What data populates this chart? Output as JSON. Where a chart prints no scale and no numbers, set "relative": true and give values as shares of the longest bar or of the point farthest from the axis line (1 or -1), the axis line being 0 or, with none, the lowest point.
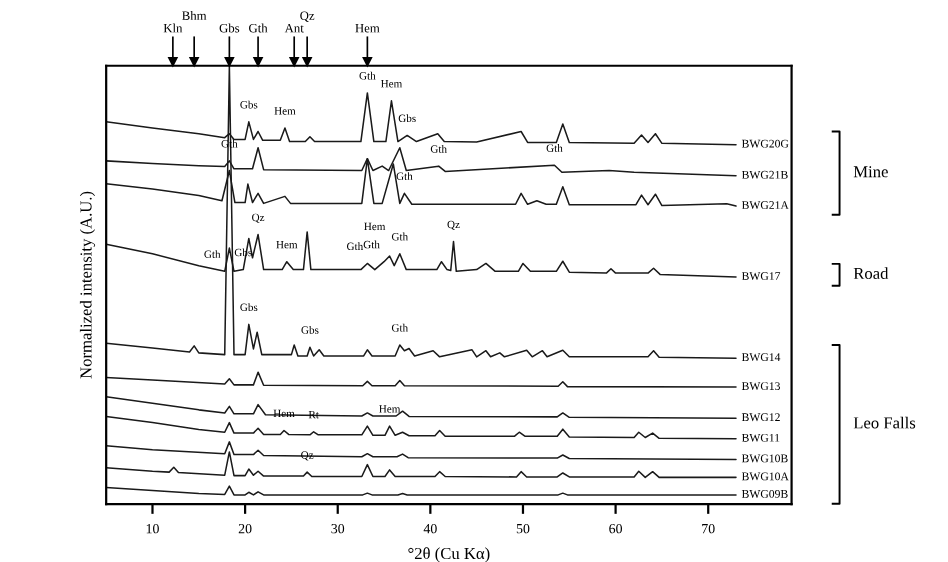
{
  "chart_data": {
    "type": "line",
    "relative": true,
    "xlabel": "°2θ (Cu Kα)",
    "ylabel": "Normalized intensity (A.U.)",
    "xlim": [
      5,
      79
    ],
    "xticks": [
      10,
      20,
      30,
      40,
      50,
      60,
      70
    ],
    "ref_lines": [
      {
        "axis": "x",
        "value": 12.2,
        "label": "Kln"
      },
      {
        "axis": "x",
        "value": 14.5,
        "label": "Bhm"
      },
      {
        "axis": "x",
        "value": 18.3,
        "label": "Gbs"
      },
      {
        "axis": "x",
        "value": 21.4,
        "label": "Gth"
      },
      {
        "axis": "x",
        "value": 25.3,
        "label": "Ant"
      },
      {
        "axis": "x",
        "value": 26.7,
        "label": "Qz"
      },
      {
        "axis": "x",
        "value": 33.2,
        "label": "Hem"
      }
    ],
    "legend": false,
    "grid": false,
    "marker": "none",
    "line_style": "solid",
    "series": [
      {
        "name": "BWG20G",
        "color": "#1a1a1a",
        "x": [
          5,
          10,
          15,
          17.8,
          18.3,
          18.8,
          20.0,
          20.4,
          20.9,
          21.4,
          21.9,
          23.8,
          24.3,
          24.8,
          26.5,
          27,
          27.5,
          32.5,
          33.2,
          33.9,
          35.2,
          35.8,
          36.5,
          37.5,
          38.5,
          40.8,
          41.5,
          45,
          49.8,
          50.5,
          53.6,
          54.3,
          55,
          62,
          62.8,
          63.5,
          64.3,
          65,
          73
        ],
        "values": [
          0.872,
          0.858,
          0.845,
          0.836,
          0.845,
          0.832,
          0.832,
          0.872,
          0.832,
          0.85,
          0.83,
          0.83,
          0.858,
          0.827,
          0.827,
          0.838,
          0.827,
          0.827,
          0.938,
          0.827,
          0.827,
          0.92,
          0.827,
          0.841,
          0.827,
          0.845,
          0.827,
          0.826,
          0.85,
          0.825,
          0.825,
          0.867,
          0.825,
          0.823,
          0.842,
          0.825,
          0.845,
          0.823,
          0.82
        ]
      },
      {
        "name": "BWG21B",
        "color": "#1a1a1a",
        "x": [
          5,
          10,
          15,
          17.8,
          18.3,
          18.8,
          20.8,
          21.4,
          22.0,
          32.6,
          33.2,
          33.8,
          34.8,
          35.5,
          36.7,
          37.4,
          40.9,
          41.6,
          53.4,
          54.2,
          59.3,
          62,
          73
        ],
        "values": [
          0.783,
          0.777,
          0.772,
          0.77,
          0.783,
          0.765,
          0.765,
          0.813,
          0.763,
          0.761,
          0.788,
          0.761,
          0.771,
          0.761,
          0.813,
          0.761,
          0.771,
          0.759,
          0.773,
          0.757,
          0.761,
          0.757,
          0.749
        ]
      },
      {
        "name": "BWG21A",
        "color": "#1a1a1a",
        "x": [
          5,
          10,
          15,
          17.5,
          18.3,
          18.9,
          20.0,
          20.3,
          20.8,
          21.4,
          22,
          24.3,
          24.9,
          32.6,
          33.2,
          33.9,
          34.8,
          36.0,
          36.7,
          37.2,
          38,
          49.2,
          49.8,
          50.5,
          51.5,
          52.5,
          53.6,
          54.3,
          55,
          62.2,
          62.8,
          63.5,
          64.3,
          65,
          72,
          73
        ],
        "values": [
          0.731,
          0.719,
          0.704,
          0.692,
          0.761,
          0.688,
          0.688,
          0.73,
          0.688,
          0.709,
          0.686,
          0.702,
          0.686,
          0.686,
          0.788,
          0.686,
          0.686,
          0.776,
          0.686,
          0.709,
          0.684,
          0.684,
          0.709,
          0.684,
          0.692,
          0.684,
          0.684,
          0.724,
          0.683,
          0.683,
          0.705,
          0.683,
          0.707,
          0.681,
          0.685,
          0.68
        ]
      },
      {
        "name": "BWG17",
        "color": "#1a1a1a",
        "x": [
          5,
          10,
          15,
          17.8,
          18.3,
          18.8,
          19.8,
          20.4,
          20.8,
          21.4,
          22.0,
          24.0,
          24.5,
          25.2,
          26.3,
          26.7,
          27.1,
          32.5,
          33.2,
          34.0,
          35.0,
          35.6,
          36.1,
          36.7,
          37.4,
          40.7,
          41.2,
          41.8,
          42.2,
          42.5,
          42.8,
          45,
          46,
          47,
          49.5,
          50,
          50.8,
          53.6,
          54.3,
          55,
          59,
          59.5,
          60,
          63.5,
          64.1,
          64.8,
          73
        ],
        "values": [
          0.593,
          0.571,
          0.544,
          0.531,
          0.584,
          0.531,
          0.535,
          0.606,
          0.562,
          0.615,
          0.535,
          0.535,
          0.553,
          0.535,
          0.535,
          0.621,
          0.535,
          0.535,
          0.549,
          0.535,
          0.553,
          0.566,
          0.544,
          0.571,
          0.535,
          0.535,
          0.553,
          0.535,
          0.533,
          0.599,
          0.531,
          0.535,
          0.549,
          0.531,
          0.531,
          0.549,
          0.531,
          0.531,
          0.554,
          0.529,
          0.527,
          0.537,
          0.527,
          0.527,
          0.538,
          0.524,
          0.518
        ]
      },
      {
        "name": "BWG14",
        "color": "#1a1a1a",
        "x": [
          5,
          10,
          14,
          14.5,
          15,
          17.8,
          18.3,
          18.8,
          20.0,
          20.4,
          20.9,
          21.3,
          21.8,
          25.0,
          25.3,
          25.7,
          26.7,
          27,
          27.4,
          28,
          28.5,
          32.8,
          33.2,
          33.7,
          36.2,
          36.7,
          37.2,
          37.7,
          38.3,
          40.3,
          41,
          44.5,
          45,
          46,
          46.5,
          47.5,
          48,
          50.4,
          51,
          52.1,
          52.6,
          54.3,
          55,
          63.5,
          64.1,
          64.7,
          73
        ],
        "values": [
          0.367,
          0.356,
          0.347,
          0.361,
          0.345,
          0.341,
          1.0,
          0.341,
          0.341,
          0.41,
          0.354,
          0.392,
          0.341,
          0.341,
          0.363,
          0.338,
          0.338,
          0.358,
          0.338,
          0.352,
          0.338,
          0.338,
          0.352,
          0.338,
          0.338,
          0.363,
          0.35,
          0.355,
          0.338,
          0.35,
          0.336,
          0.352,
          0.336,
          0.35,
          0.336,
          0.345,
          0.336,
          0.351,
          0.336,
          0.35,
          0.336,
          0.351,
          0.336,
          0.336,
          0.35,
          0.335,
          0.333
        ]
      },
      {
        "name": "BWG13",
        "color": "#1a1a1a",
        "x": [
          5,
          10,
          17.8,
          18.3,
          18.8,
          20.9,
          21.4,
          22,
          32.7,
          33.2,
          33.7,
          36.2,
          36.7,
          37.2,
          53.8,
          54.3,
          54.8,
          73
        ],
        "values": [
          0.289,
          0.283,
          0.274,
          0.286,
          0.272,
          0.272,
          0.301,
          0.271,
          0.27,
          0.28,
          0.27,
          0.27,
          0.282,
          0.27,
          0.269,
          0.279,
          0.268,
          0.267
        ]
      },
      {
        "name": "BWG12",
        "color": "#1a1a1a",
        "x": [
          5,
          10,
          15,
          17.8,
          18.3,
          18.8,
          20.9,
          21.4,
          22.2,
          32.6,
          33.2,
          33.8,
          36.3,
          37,
          37.7,
          53.7,
          54.3,
          55,
          73
        ],
        "values": [
          0.245,
          0.23,
          0.215,
          0.208,
          0.223,
          0.206,
          0.206,
          0.227,
          0.204,
          0.201,
          0.208,
          0.201,
          0.201,
          0.212,
          0.2,
          0.199,
          0.208,
          0.198,
          0.196
        ]
      },
      {
        "name": "BWG11",
        "color": "#1a1a1a",
        "x": [
          5,
          10,
          15,
          17.8,
          18.3,
          18.8,
          20.9,
          21.4,
          22,
          23.8,
          24.2,
          24.7,
          27,
          27.4,
          27.9,
          32.6,
          33.2,
          33.8,
          35.1,
          35.6,
          36.2,
          37,
          37.7,
          40.5,
          41,
          41.6,
          49.1,
          49.6,
          50.2,
          53.7,
          54.3,
          55,
          62,
          62.5,
          63.2,
          64,
          64.7,
          73
        ],
        "values": [
          0.2,
          0.186,
          0.17,
          0.164,
          0.186,
          0.162,
          0.162,
          0.173,
          0.159,
          0.159,
          0.168,
          0.159,
          0.158,
          0.165,
          0.158,
          0.158,
          0.178,
          0.157,
          0.157,
          0.178,
          0.157,
          0.164,
          0.156,
          0.156,
          0.168,
          0.155,
          0.155,
          0.164,
          0.155,
          0.155,
          0.171,
          0.153,
          0.152,
          0.164,
          0.152,
          0.162,
          0.15,
          0.149
        ]
      },
      {
        "name": "BWG10B",
        "color": "#1a1a1a",
        "x": [
          5,
          10,
          17.8,
          18.3,
          18.8,
          20.9,
          21.4,
          22,
          32.6,
          33.2,
          33.8,
          36.4,
          37,
          37.6,
          53.7,
          54.3,
          55,
          73
        ],
        "values": [
          0.133,
          0.124,
          0.115,
          0.142,
          0.113,
          0.113,
          0.123,
          0.111,
          0.108,
          0.115,
          0.108,
          0.108,
          0.114,
          0.106,
          0.105,
          0.112,
          0.104,
          0.102
        ]
      },
      {
        "name": "BWG10A",
        "color": "#1a1a1a",
        "x": [
          5,
          10,
          11.8,
          12.3,
          12.8,
          17.8,
          18.3,
          18.8,
          20.0,
          20.4,
          20.9,
          21.4,
          22,
          26.3,
          26.7,
          27.2,
          32.6,
          33.2,
          33.8,
          35.1,
          35.6,
          36.2,
          40.5,
          41,
          41.6,
          49.3,
          49.8,
          50.4,
          53.7,
          54.3,
          55,
          62,
          62.5,
          63.2,
          64,
          64.7,
          73
        ],
        "values": [
          0.083,
          0.075,
          0.073,
          0.084,
          0.072,
          0.066,
          0.119,
          0.065,
          0.065,
          0.08,
          0.066,
          0.075,
          0.064,
          0.064,
          0.073,
          0.063,
          0.063,
          0.09,
          0.063,
          0.063,
          0.078,
          0.063,
          0.063,
          0.074,
          0.063,
          0.062,
          0.074,
          0.062,
          0.062,
          0.071,
          0.062,
          0.062,
          0.075,
          0.061,
          0.074,
          0.061,
          0.061
        ]
      },
      {
        "name": "BWG09B",
        "color": "#1a1a1a",
        "x": [
          5,
          10,
          15,
          17.8,
          18.3,
          18.8,
          20.0,
          20.4,
          20.9,
          21.4,
          22,
          32.7,
          33.2,
          33.7,
          36.5,
          37,
          37.5,
          53.8,
          54.3,
          54.8,
          73
        ],
        "values": [
          0.038,
          0.031,
          0.024,
          0.022,
          0.041,
          0.021,
          0.021,
          0.027,
          0.021,
          0.028,
          0.021,
          0.021,
          0.025,
          0.021,
          0.021,
          0.024,
          0.021,
          0.021,
          0.025,
          0.021,
          0.021
        ]
      }
    ],
    "annotations": [
      {
        "text": "Gbs",
        "x": 20.4,
        "y": 0.872
      },
      {
        "text": "Hem",
        "x": 24.3,
        "y": 0.858
      },
      {
        "text": "Gth",
        "x": 33.2,
        "y": 0.938
      },
      {
        "text": "Hem",
        "x": 35.8,
        "y": 0.92
      },
      {
        "text": "Gbs",
        "x": 37.5,
        "y": 0.841
      },
      {
        "text": "Gth",
        "x": 18.3,
        "y": 0.783
      },
      {
        "text": "Gth",
        "x": 40.9,
        "y": 0.771
      },
      {
        "text": "Gth",
        "x": 53.4,
        "y": 0.773
      },
      {
        "text": "Gth",
        "x": 37.2,
        "y": 0.709
      },
      {
        "text": "Gth",
        "x": 17.8,
        "y": 0.531
      },
      {
        "text": "Gbs",
        "x": 19.8,
        "y": 0.535
      },
      {
        "text": "Qz",
        "x": 21.4,
        "y": 0.615
      },
      {
        "text": "Hem",
        "x": 24.5,
        "y": 0.553
      },
      {
        "text": "Gth",
        "x": 33.2,
        "y": 0.549
      },
      {
        "text": "Gth",
        "x": 35.0,
        "y": 0.553
      },
      {
        "text": "Hem",
        "x": 35.6,
        "y": 0.566
      },
      {
        "text": "Gth",
        "x": 36.7,
        "y": 0.571
      },
      {
        "text": "Qz",
        "x": 42.5,
        "y": 0.599
      },
      {
        "text": "Gbs",
        "x": 20.4,
        "y": 0.41
      },
      {
        "text": "Gbs",
        "x": 27,
        "y": 0.358
      },
      {
        "text": "Gth",
        "x": 36.7,
        "y": 0.363
      },
      {
        "text": "Hem",
        "x": 24.2,
        "y": 0.168
      },
      {
        "text": "Rt",
        "x": 27.4,
        "y": 0.165
      },
      {
        "text": "Hem",
        "x": 35.6,
        "y": 0.178
      },
      {
        "text": "Qz",
        "x": 26.7,
        "y": 0.073
      },
      "Mine",
      "Road",
      "Leo Falls"
    ]
  }
}
